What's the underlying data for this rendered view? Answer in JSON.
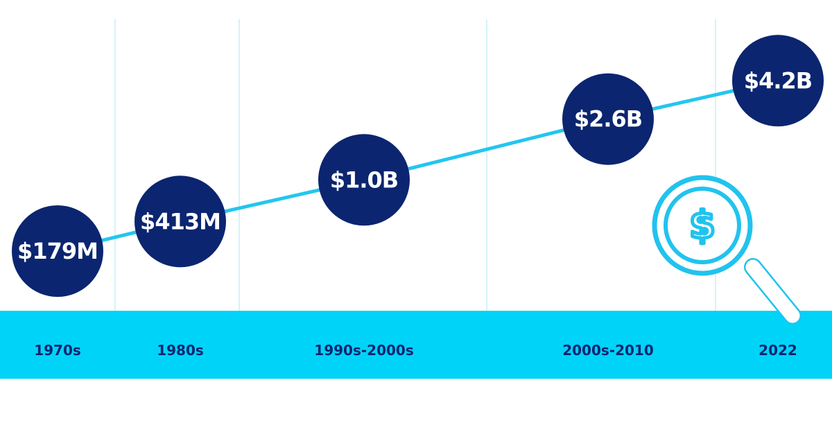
{
  "colors": {
    "navy": "#0b2570",
    "cyan": "#00d3f8",
    "line": "#23c6ef",
    "divider": "#a9e4f5",
    "magnifier": "#21c3ee"
  },
  "chart_data": {
    "type": "line",
    "categories": [
      "1970s",
      "1980s",
      "1990s-2000s",
      "2000s-2010",
      "2022"
    ],
    "values": [
      179,
      413,
      1000,
      2600,
      4200
    ],
    "labels": [
      "$179M",
      "$413M",
      "$1.0B",
      "$2.6B",
      "$4.2B"
    ],
    "unit": "USD millions",
    "title": "",
    "xlabel": "",
    "ylabel": "",
    "grid": false,
    "legend": "none"
  },
  "decoration": {
    "icon": "magnifier-dollar-icon",
    "symbol": "$"
  }
}
